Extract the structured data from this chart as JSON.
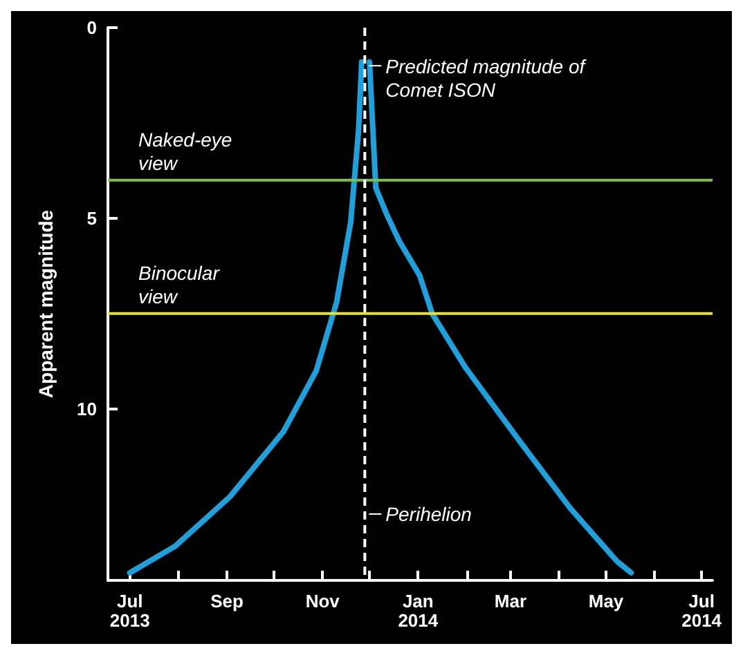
{
  "chart_data": {
    "type": "line",
    "ylabel": "Apparent magnitude",
    "x": [
      "2013-07-01",
      "2013-07-30",
      "2013-09-03",
      "2013-10-07",
      "2013-10-28",
      "2013-11-10",
      "2013-11-19",
      "2013-11-24",
      "2013-11-26",
      "2013-11-28",
      "2013-12-01",
      "2013-12-05",
      "2013-12-12",
      "2013-12-20",
      "2014-01-02",
      "2014-01-10",
      "2014-01-31",
      "2014-03-06",
      "2014-04-08",
      "2014-05-08",
      "2014-05-17"
    ],
    "series": [
      {
        "color": "#1ea0dc",
        "values": [
          14.3,
          13.6,
          12.3,
          10.6,
          9.0,
          7.2,
          5.1,
          2.7,
          0.9,
          null,
          0.9,
          4.2,
          4.9,
          5.6,
          6.5,
          7.5,
          8.9,
          10.8,
          12.6,
          14.0,
          14.3
        ]
      }
    ],
    "xlim": [
      "2013-06-17",
      "2014-07-08"
    ],
    "ylim": [
      14.5,
      0
    ],
    "yticks": [
      0,
      5,
      10
    ],
    "xticks": [
      {
        "value": "2013-07-01",
        "label": "Jul\n2013"
      },
      {
        "value": "2013-08-01",
        "label": null
      },
      {
        "value": "2013-09-01",
        "label": "Sep"
      },
      {
        "value": "2013-10-01",
        "label": null
      },
      {
        "value": "2013-11-01",
        "label": "Nov"
      },
      {
        "value": "2013-12-01",
        "label": null
      },
      {
        "value": "2014-01-01",
        "label": "Jan\n2014"
      },
      {
        "value": "2014-02-01",
        "label": null
      },
      {
        "value": "2014-03-01",
        "label": "Mar"
      },
      {
        "value": "2014-04-01",
        "label": null
      },
      {
        "value": "2014-05-01",
        "label": "May"
      },
      {
        "value": "2014-06-01",
        "label": null
      },
      {
        "value": "2014-07-01",
        "label": "Jul\n2014"
      }
    ],
    "ref_lines": [
      {
        "axis": "y",
        "value": 4,
        "label": "Naked-eye view",
        "color": "#7cc242"
      },
      {
        "axis": "y",
        "value": 7.5,
        "label": "Binocular view",
        "color": "#e6e236"
      },
      {
        "axis": "x",
        "value": "2013-11-28",
        "label": "Perihelion",
        "color": "#ffffff",
        "line_style": "dashed"
      }
    ],
    "annotations": [
      {
        "text": "Predicted magnitude of Comet ISON",
        "x": "2013-11-28",
        "y": 1
      }
    ],
    "grid": false,
    "marker": "none",
    "line_style": "solid"
  }
}
